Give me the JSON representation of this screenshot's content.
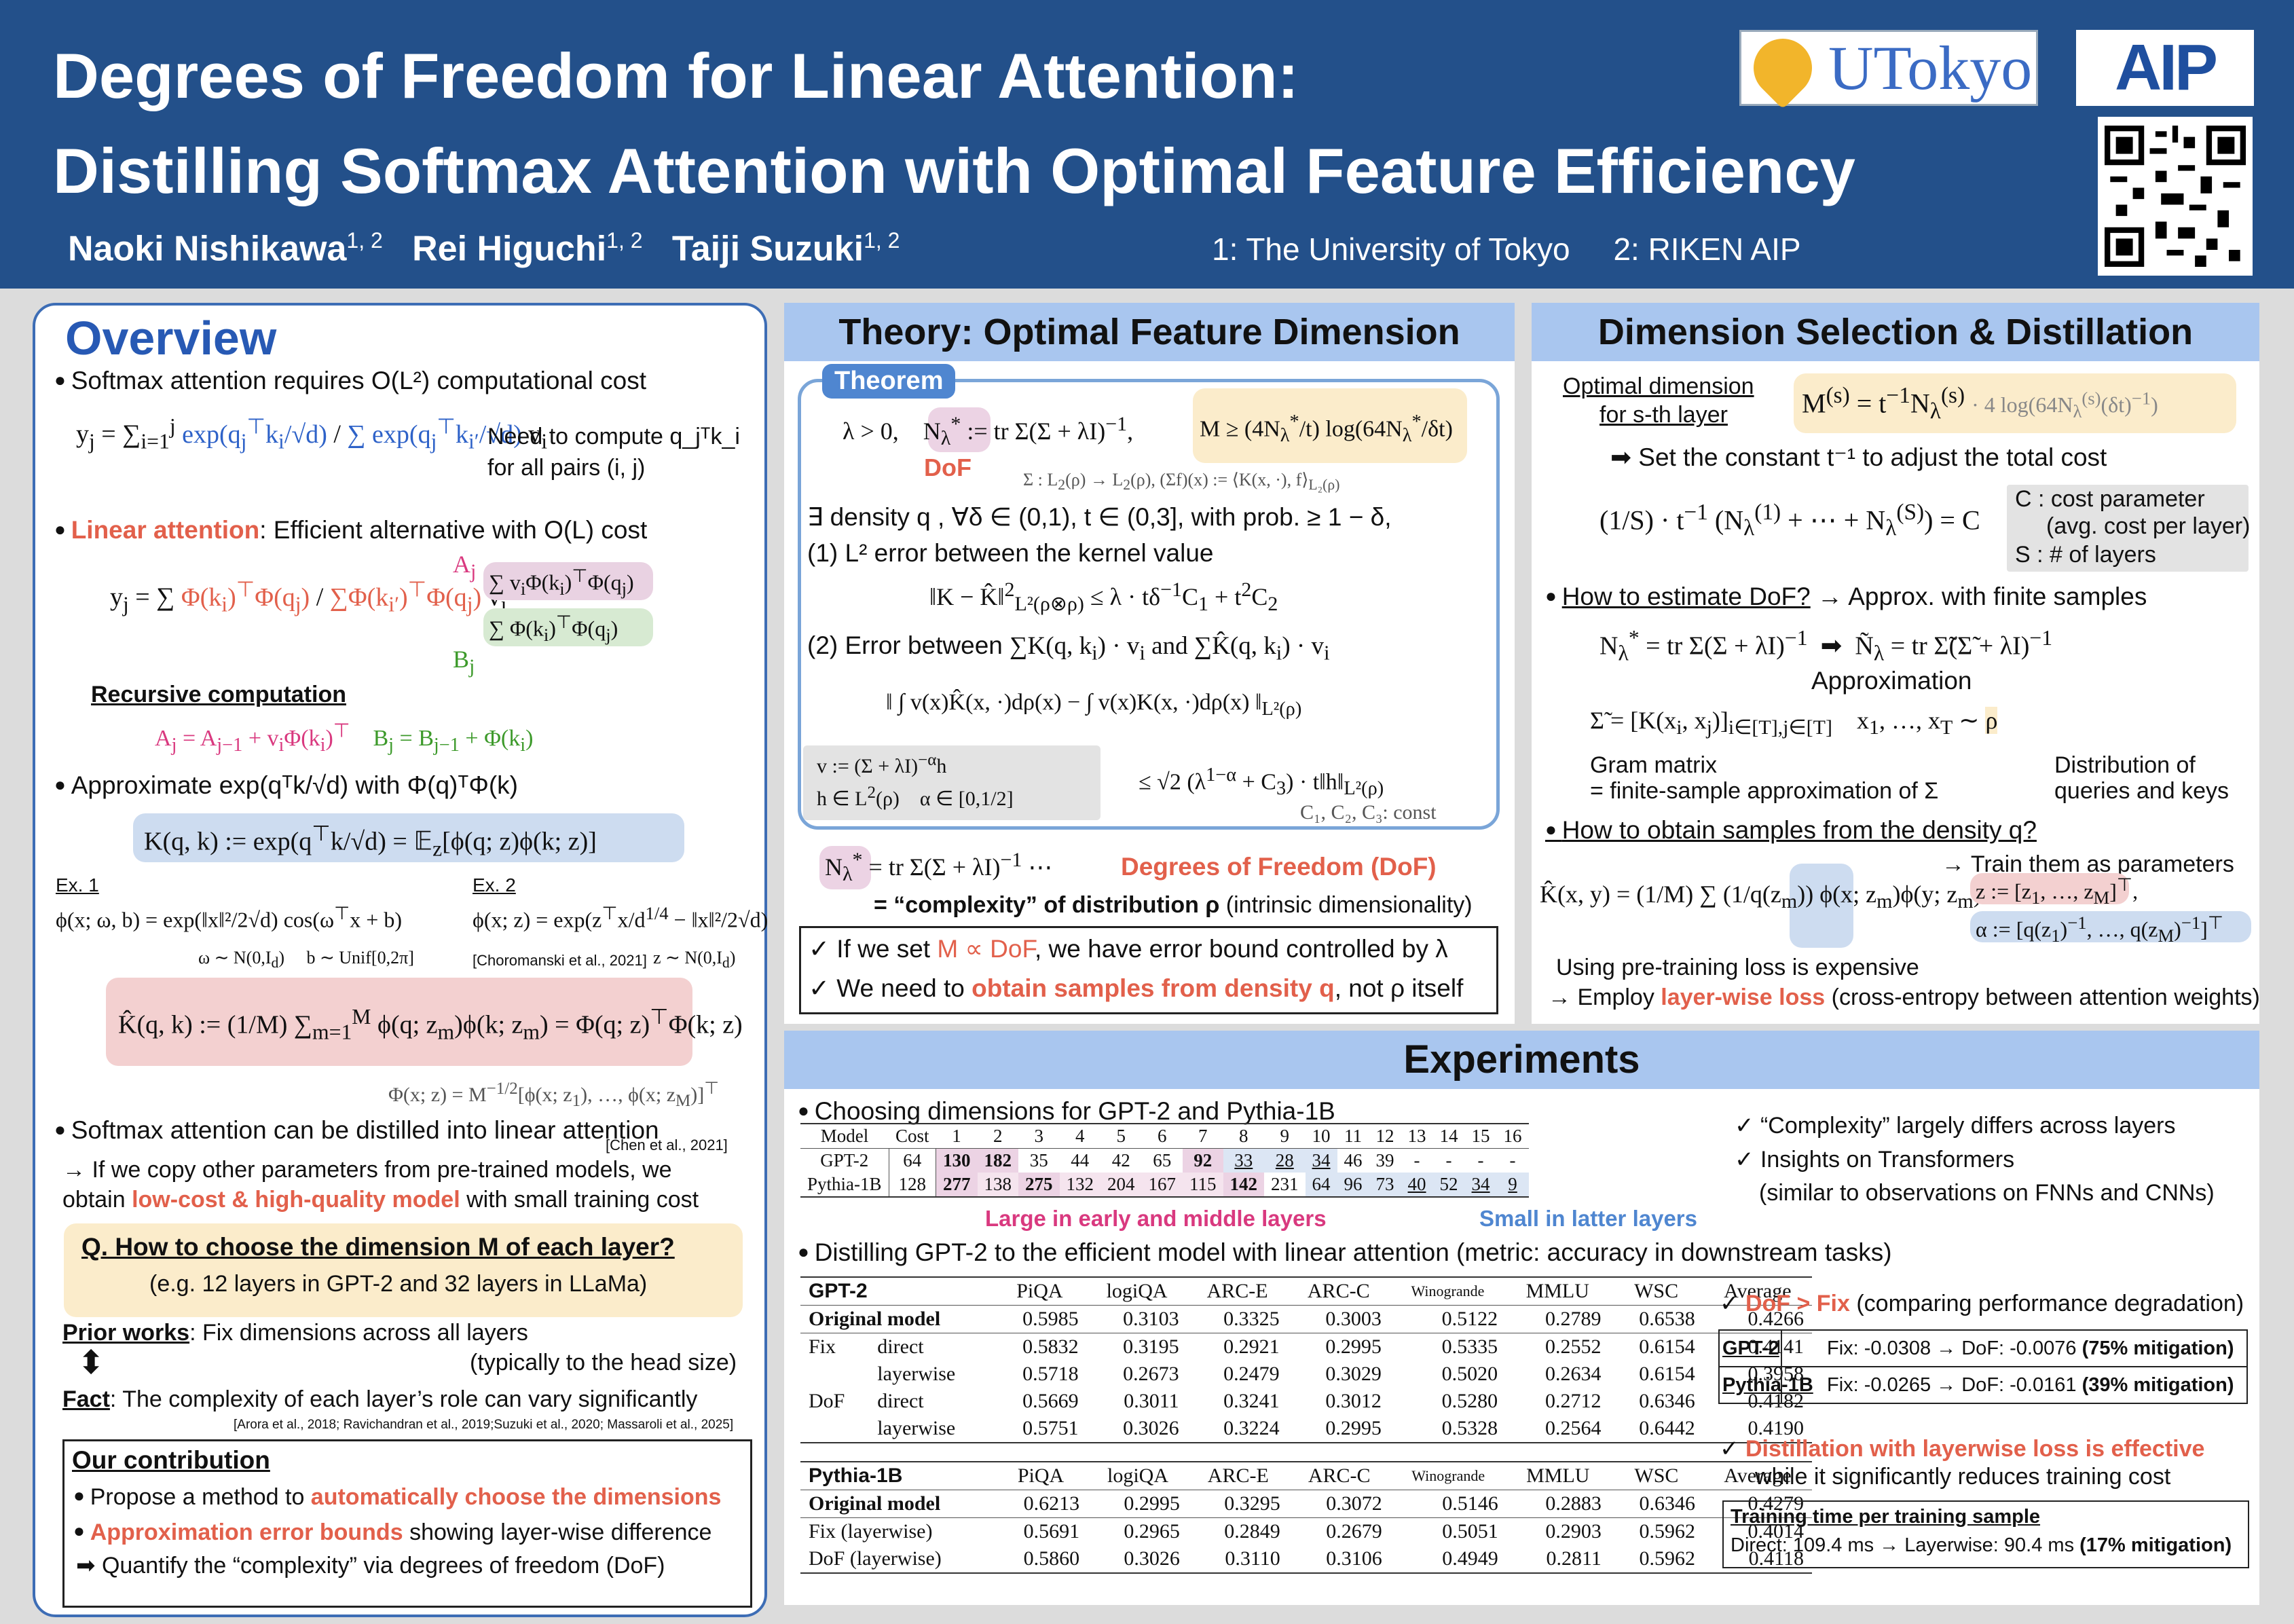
{
  "header": {
    "title_line1": "Degrees of Freedom for Linear Attention:",
    "title_line2": "Distilling Softmax Attention with Optimal Feature Efficiency",
    "authors": [
      {
        "name": "Naoki Nishikawa",
        "aff": "1, 2"
      },
      {
        "name": "Rei Higuchi",
        "aff": "1, 2"
      },
      {
        "name": "Taiji Suzuki",
        "aff": "1, 2"
      }
    ],
    "affiliations": "1: The University of Tokyo     2: RIKEN AIP",
    "logo_utokyo": "UTokyo",
    "logo_aip": "AIP"
  },
  "overview": {
    "title": "Overview",
    "b1": "Softmax attention requires O(L²) computational cost",
    "b1_note1": "Need to compute q_jᵀk_i",
    "b1_note2": "for all pairs (i, j)",
    "b2_red": "Linear attention",
    "b2_rest": ": Efficient alternative with O(L) cost",
    "recursive": "Recursive computation",
    "b3": "Approximate exp(qᵀk/√d) with Φ(q)ᵀΦ(k)",
    "ex1": "Ex. 1",
    "ex2": "Ex. 2",
    "choromanski": "[Choromanski et al., 2021]",
    "b4": "Softmax attention can be distilled into linear attention",
    "chen": "[Chen et al., 2021]",
    "b4_l2": "→ If we copy other parameters from pre-trained models, we",
    "b4_l3a": "obtain ",
    "b4_l3red": "low-cost & high-quality model",
    "b4_l3b": " with small training cost",
    "q_title": "Q. How to choose the dimension M of each layer?",
    "q_sub": "(e.g. 12 layers in GPT-2 and 32 layers in LLaMa)",
    "prior_u": "Prior works",
    "prior_rest": ": Fix dimensions across all layers",
    "prior_sub": "(typically to the head size)",
    "fact_u": "Fact",
    "fact_rest": ": The complexity of each layer’s role can vary significantly",
    "fact_refs": "[Arora et al., 2018; Ravichandran et al., 2019;Suzuki et al., 2020; Massaroli et al., 2025]",
    "contrib_title": "Our contribution",
    "c1a": "Propose a method to ",
    "c1red": "automatically choose the dimensions",
    "c2red": "Approximation error bounds",
    "c2b": " showing layer-wise difference",
    "c3": "Quantify the “complexity” via degrees of freedom (DoF)"
  },
  "theory": {
    "title": "Theory: Optimal Feature Dimension",
    "tag": "Theorem",
    "dof": "DoF",
    "l_density": "∃ density q , ∀δ ∈ (0,1), t ∈ (0,3], with prob. ≥ 1 − δ,",
    "p1": "(1) L² error between the kernel value",
    "p2a": "(2) Error between",
    "consts": "C₁, C₂, C₃: const",
    "dof_red": "Degrees of Freedom (DoF)",
    "dof_line2a": "= “complexity” of distribution ρ",
    "dof_line2b": " (intrinsic dimensionality)",
    "chk1a": "If we set ",
    "chk1red": "M ∝ DoF",
    "chk1b": ", we have error bound controlled by λ",
    "chk2a": "We need to ",
    "chk2red": "obtain samples from density q",
    "chk2b": ", not ρ itself"
  },
  "dimsel": {
    "title": "Dimension Selection & Distillation",
    "opt_l1": "Optimal dimension",
    "opt_l2": "for s-th layer",
    "set_const": "Set the constant t⁻¹ to adjust the total cost",
    "c_cost": "C : cost parameter",
    "c_avg": "(avg. cost per layer)",
    "s_layers": "S : # of layers",
    "how_dof": "How to estimate DoF?",
    "how_dof_rest": "→ Approx. with finite samples",
    "approx": "Approximation",
    "gram1": "Gram matrix",
    "gram2": "= finite-sample approximation of Σ",
    "distq1": "Distribution of",
    "distq2": "queries and keys",
    "how_samp": "How to obtain samples from the density q?",
    "train_params": "→ Train them as parameters",
    "pretrain": "Using pre-training loss is expensive",
    "employ_a": "→ Employ ",
    "employ_red": "layer-wise loss",
    "employ_b": " (cross-entropy between attention weights)"
  },
  "experiments": {
    "title": "Experiments",
    "choose": "Choosing dimensions for GPT-2 and Pythia-1B",
    "dim_table": {
      "header": [
        "Model",
        "Cost",
        "1",
        "2",
        "3",
        "4",
        "5",
        "6",
        "7",
        "8",
        "9",
        "10",
        "11",
        "12",
        "13",
        "14",
        "15",
        "16"
      ],
      "rows": [
        [
          "GPT-2",
          "64",
          "130",
          "182",
          "35",
          "44",
          "42",
          "65",
          "92",
          "33",
          "28",
          "34",
          "46",
          "39",
          "-",
          "-",
          "-",
          "-"
        ],
        [
          "Pythia-1B",
          "128",
          "277",
          "138",
          "275",
          "132",
          "204",
          "167",
          "115",
          "142",
          "231",
          "64",
          "96",
          "73",
          "40",
          "52",
          "34",
          "9"
        ]
      ]
    },
    "large": "Large in early and middle layers",
    "small": "Small in latter layers",
    "obs1": "“Complexity” largely differs across layers",
    "obs2": "Insights on Transformers",
    "obs3": "(similar to observations on FNNs and CNNs)",
    "distill": "Distilling GPT-2 to the efficient model with linear attention (metric: accuracy in downstream tasks)",
    "res_cols": [
      "PiQA",
      "logiQA",
      "ARC-E",
      "ARC-C",
      "Winogrande",
      "MMLU",
      "WSC",
      "Average"
    ],
    "gpt2": {
      "name": "GPT-2",
      "rows": [
        [
          "Original model",
          "",
          "0.5985",
          "0.3103",
          "0.3325",
          "0.3003",
          "0.5122",
          "0.2789",
          "0.6538",
          "0.4266"
        ],
        [
          "Fix",
          "direct",
          "0.5832",
          "0.3195",
          "0.2921",
          "0.2995",
          "0.5335",
          "0.2552",
          "0.6154",
          "0.4141"
        ],
        [
          "",
          "layerwise",
          "0.5718",
          "0.2673",
          "0.2479",
          "0.3029",
          "0.5020",
          "0.2634",
          "0.6154",
          "0.3958"
        ],
        [
          "DoF",
          "direct",
          "0.5669",
          "0.3011",
          "0.3241",
          "0.3012",
          "0.5280",
          "0.2712",
          "0.6346",
          "0.4182"
        ],
        [
          "",
          "layerwise",
          "0.5751",
          "0.3026",
          "0.3224",
          "0.2995",
          "0.5328",
          "0.2564",
          "0.6442",
          "0.4190"
        ]
      ]
    },
    "pythia": {
      "name": "Pythia-1B",
      "rows": [
        [
          "Original model",
          "0.6213",
          "0.2995",
          "0.3295",
          "0.3072",
          "0.5146",
          "0.2883",
          "0.6346",
          "0.4279"
        ],
        [
          "Fix (layerwise)",
          "0.5691",
          "0.2965",
          "0.2849",
          "0.2679",
          "0.5051",
          "0.2903",
          "0.5962",
          "0.4014"
        ],
        [
          "DoF (layerwise)",
          "0.5860",
          "0.3026",
          "0.3110",
          "0.3106",
          "0.4949",
          "0.2811",
          "0.5962",
          "0.4118"
        ]
      ]
    },
    "dof_fix_red": "DoF > Fix",
    "dof_fix_b": " (comparing performance degradation)",
    "mit": [
      {
        "model": "GPT-2",
        "text": "Fix: -0.0308 → DoF: -0.0076 ",
        "bold": "(75% mitigation)"
      },
      {
        "model": "Pythia-1B",
        "text": "Fix: -0.0265 → DoF: -0.0161 ",
        "bold": "(39% mitigation)"
      }
    ],
    "lw_red": "Distillation with layerwise loss is effective",
    "lw_b": "while it significantly reduces training cost",
    "tt_title": "Training time per training sample",
    "tt_text": "Direct: 109.4 ms → Layerwise: 90.4 ms ",
    "tt_bold": "(17% mitigation)"
  }
}
